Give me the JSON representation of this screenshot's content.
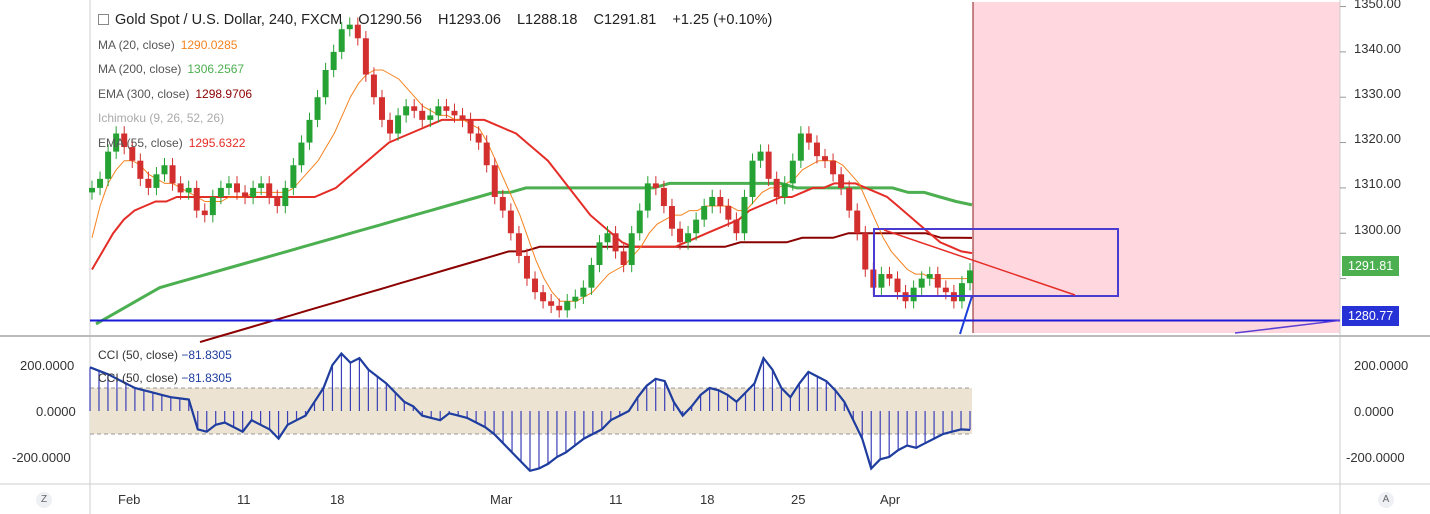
{
  "header": {
    "symbol_title": "Gold Spot / U.S. Dollar, 240, FXCM",
    "open": "O1290.56",
    "high": "H1293.06",
    "low": "L1288.18",
    "close": "C1291.81",
    "change": "+1.25 (+0.10%)"
  },
  "indicators": [
    {
      "label": "MA (20, close)",
      "value": "1290.0285",
      "color": "#f5821f"
    },
    {
      "label": "MA (200, close)",
      "value": "1306.2567",
      "color": "#4caf50"
    },
    {
      "label": "EMA (300, close)",
      "value": "1298.9706",
      "color": "#8b0000"
    },
    {
      "label": "Ichimoku (9, 26, 52, 26)",
      "value": "",
      "color": "#aaaaaa"
    },
    {
      "label": "EMA (55, close)",
      "value": "1295.6322",
      "color": "#e52d27"
    }
  ],
  "cci_legend": [
    {
      "label": "CCI (50, close)",
      "value": "−81.8305"
    },
    {
      "label": "CCI (50, close)",
      "value": "−81.8305"
    }
  ],
  "price_axis": {
    "ticks": [
      "1350.00",
      "1340.00",
      "1330.00",
      "1320.00",
      "1310.00",
      "1300.00"
    ],
    "last_price_tag": "1291.81",
    "support_tag": "1280.77",
    "tag_colors": {
      "last": "#4caf50",
      "support": "#2632d6"
    }
  },
  "cci_axis": {
    "ticks": [
      "200.0000",
      "0.0000",
      "-200.0000"
    ]
  },
  "time_axis": {
    "ticks": [
      "Feb",
      "11",
      "18",
      "Mar",
      "11",
      "18",
      "25",
      "Apr"
    ]
  },
  "corner_buttons": {
    "left": "Z",
    "right": "A"
  },
  "chart_data": {
    "type": "candlestick",
    "ylim": [
      1278,
      1351
    ],
    "support_level": 1280.77,
    "candles_close": [
      1310,
      1312,
      1318,
      1322,
      1319,
      1316,
      1312,
      1310,
      1313,
      1315,
      1311,
      1309,
      1310,
      1305,
      1304,
      1308,
      1310,
      1311,
      1309,
      1308,
      1310,
      1311,
      1308,
      1306,
      1310,
      1315,
      1320,
      1325,
      1330,
      1336,
      1340,
      1345,
      1346,
      1343,
      1335,
      1330,
      1325,
      1322,
      1326,
      1328,
      1327,
      1325,
      1326,
      1328,
      1327,
      1326,
      1325,
      1322,
      1320,
      1315,
      1308,
      1305,
      1300,
      1295,
      1290,
      1287,
      1285,
      1284,
      1283,
      1285,
      1286,
      1288,
      1293,
      1298,
      1300,
      1296,
      1293,
      1300,
      1305,
      1311,
      1310,
      1306,
      1301,
      1298,
      1300,
      1303,
      1306,
      1308,
      1306,
      1303,
      1300,
      1308,
      1316,
      1318,
      1312,
      1308,
      1311,
      1316,
      1322,
      1320,
      1317,
      1316,
      1313,
      1310,
      1305,
      1300,
      1292,
      1288,
      1291,
      1290,
      1287,
      1285,
      1288,
      1290,
      1291,
      1288,
      1287,
      1285,
      1289,
      1291.81
    ],
    "ma20": [
      1299,
      1306,
      1311,
      1314,
      1316,
      1316,
      1315,
      1313,
      1312,
      1311,
      1311,
      1310,
      1309,
      1308,
      1307,
      1307,
      1307,
      1308,
      1308,
      1308,
      1309,
      1309,
      1309,
      1309,
      1309,
      1310,
      1312,
      1314,
      1316,
      1319,
      1322,
      1326,
      1330,
      1333,
      1335,
      1336,
      1336,
      1335,
      1334,
      1332,
      1330,
      1328,
      1327,
      1326,
      1326,
      1325,
      1325,
      1324,
      1323,
      1320,
      1316,
      1312,
      1308,
      1304,
      1299,
      1294,
      1290,
      1287,
      1285,
      1285,
      1285,
      1286,
      1287,
      1289,
      1291,
      1292,
      1293,
      1295,
      1297,
      1300,
      1302,
      1303,
      1304,
      1304,
      1305,
      1305,
      1306,
      1306,
      1306,
      1306,
      1305,
      1305,
      1307,
      1309,
      1310,
      1310,
      1311,
      1312,
      1314,
      1315,
      1316,
      1316,
      1316,
      1315,
      1313,
      1311,
      1307,
      1303,
      1299,
      1296,
      1294,
      1292,
      1291,
      1291,
      1290,
      1290,
      1290,
      1290,
      1290,
      1290.03
    ],
    "ema55": [
      1292,
      1296,
      1300,
      1303,
      1305,
      1306,
      1307,
      1307,
      1308,
      1308,
      1308,
      1308,
      1308,
      1308,
      1308,
      1308,
      1308,
      1308,
      1308,
      1308,
      1308,
      1308,
      1309,
      1310,
      1312,
      1314,
      1316,
      1318,
      1320,
      1321,
      1322,
      1323,
      1324,
      1325,
      1325,
      1325,
      1325,
      1325,
      1324,
      1323,
      1322,
      1320,
      1318,
      1316,
      1313,
      1310,
      1307,
      1304,
      1302,
      1300,
      1298,
      1297,
      1297,
      1297,
      1297,
      1297,
      1298,
      1299,
      1300,
      1301,
      1302,
      1303,
      1305,
      1306,
      1307,
      1308,
      1308,
      1309,
      1310,
      1310,
      1311,
      1311,
      1311,
      1310,
      1309,
      1308,
      1306,
      1304,
      1302,
      1300,
      1298,
      1297,
      1296,
      1295.63
    ],
    "ma200": [
      1280,
      1282,
      1284,
      1286,
      1288,
      1289,
      1290,
      1291,
      1292,
      1293,
      1294,
      1295,
      1296,
      1297,
      1298,
      1299,
      1300,
      1301,
      1302,
      1303,
      1304,
      1305,
      1306,
      1307,
      1308,
      1309,
      1309,
      1310,
      1310,
      1310,
      1310,
      1310,
      1310,
      1310,
      1310,
      1310,
      1311,
      1311,
      1311,
      1311,
      1311,
      1311,
      1311,
      1311,
      1310,
      1310,
      1310,
      1310,
      1310,
      1310,
      1310,
      1309,
      1309,
      1308,
      1307,
      1306.26
    ],
    "ema300": [
      1276,
      1277,
      1278,
      1279,
      1280,
      1281,
      1282,
      1283,
      1284,
      1285,
      1286,
      1287,
      1288,
      1289,
      1290,
      1291,
      1292,
      1293,
      1294,
      1295,
      1296,
      1296,
      1297,
      1297,
      1297,
      1297,
      1297,
      1297,
      1297,
      1297,
      1297,
      1297,
      1297,
      1297,
      1297,
      1298,
      1298,
      1298,
      1298,
      1299,
      1299,
      1299,
      1300,
      1300,
      1300,
      1300,
      1300,
      1300,
      1299,
      1299,
      1298.97
    ],
    "cci": [
      190,
      175,
      160,
      140,
      120,
      100,
      90,
      80,
      70,
      60,
      55,
      50,
      -80,
      -90,
      -60,
      -50,
      -70,
      -90,
      -40,
      -60,
      -80,
      -120,
      -60,
      -40,
      -20,
      40,
      100,
      200,
      250,
      210,
      230,
      180,
      150,
      120,
      80,
      40,
      20,
      -20,
      -30,
      -40,
      -10,
      -20,
      -30,
      -50,
      -70,
      -100,
      -140,
      -180,
      -220,
      -260,
      -250,
      -230,
      -200,
      -180,
      -150,
      -120,
      -100,
      -80,
      -40,
      -20,
      0,
      60,
      110,
      140,
      130,
      40,
      -20,
      20,
      70,
      100,
      90,
      70,
      40,
      80,
      120,
      230,
      180,
      100,
      60,
      120,
      170,
      150,
      130,
      90,
      40,
      -40,
      -120,
      -250,
      -210,
      -200,
      -170,
      -150,
      -160,
      -140,
      -120,
      -100,
      -90,
      -80,
      -82
    ]
  }
}
